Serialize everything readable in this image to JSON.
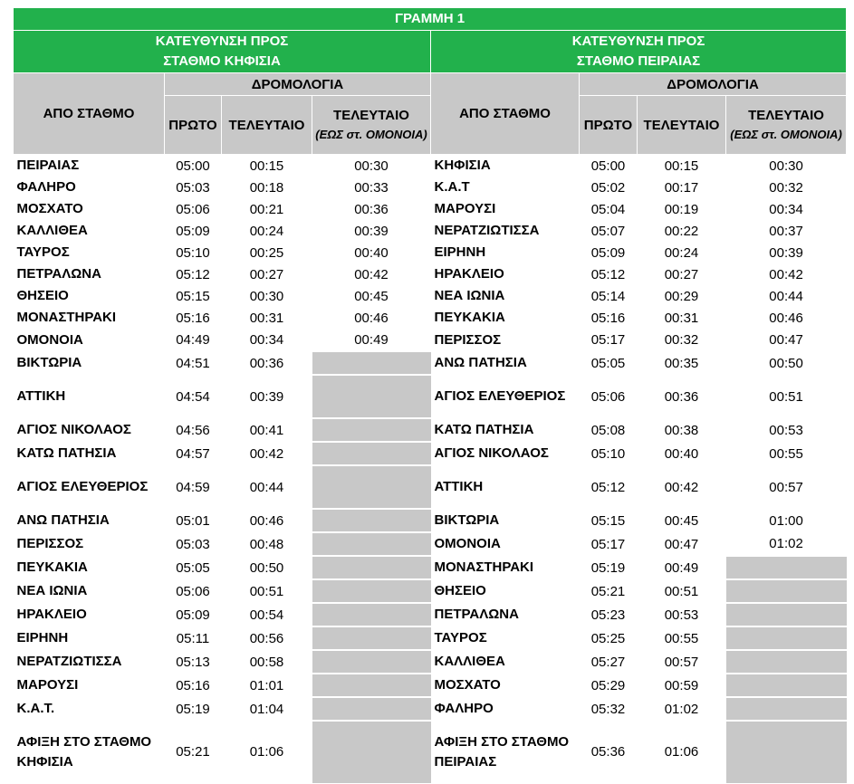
{
  "title": "ΓΡΑΜΜΗ 1",
  "directions": [
    {
      "line1": "ΚΑΤΕΥΘΥΝΣΗ ΠΡΟΣ",
      "line2": "ΣΤΑΘΜΟ ΚΗΦΙΣΙΑ"
    },
    {
      "line1": "ΚΑΤΕΥΘΥΝΣΗ ΠΡΟΣ",
      "line2": "ΣΤΑΘΜΟ ΠΕΙΡΑΙΑΣ"
    }
  ],
  "headers": {
    "from_station": "ΑΠΟ ΣΤΑΘΜΟ",
    "schedules": "ΔΡΟΜΟΛΟΓΙΑ",
    "first": "ΠΡΩΤΟ",
    "last": "ΤΕΛΕΥΤΑΙΟ",
    "last_partial": "ΤΕΛΕΥΤΑΙΟ",
    "last_partial_note": "(ΕΩΣ στ. ΟΜΟΝΟΙΑ)"
  },
  "rows": [
    {
      "h": 1,
      "l": {
        "s": "ΠΕΙΡΑΙΑΣ",
        "f": "05:00",
        "t": "00:15",
        "p": "00:30"
      },
      "r": {
        "s": "ΚΗΦΙΣΙΑ",
        "f": "05:00",
        "t": "00:15",
        "p": "00:30"
      }
    },
    {
      "h": 1,
      "l": {
        "s": "ΦΑΛΗΡΟ",
        "f": "05:03",
        "t": "00:18",
        "p": "00:33"
      },
      "r": {
        "s": "Κ.Α.Τ",
        "f": "05:02",
        "t": "00:17",
        "p": "00:32"
      }
    },
    {
      "h": 1,
      "l": {
        "s": "ΜΟΣΧΑΤΟ",
        "f": "05:06",
        "t": "00:21",
        "p": "00:36"
      },
      "r": {
        "s": "ΜΑΡΟΥΣΙ",
        "f": "05:04",
        "t": "00:19",
        "p": "00:34"
      }
    },
    {
      "h": 1,
      "l": {
        "s": "ΚΑΛΛΙΘΕΑ",
        "f": "05:09",
        "t": "00:24",
        "p": "00:39"
      },
      "r": {
        "s": "ΝΕΡΑΤΖΙΩΤΙΣΣΑ",
        "f": "05:07",
        "t": "00:22",
        "p": "00:37"
      }
    },
    {
      "h": 1,
      "l": {
        "s": "ΤΑΥΡΟΣ",
        "f": "05:10",
        "t": "00:25",
        "p": "00:40"
      },
      "r": {
        "s": "ΕΙΡΗΝΗ",
        "f": "05:09",
        "t": "00:24",
        "p": "00:39"
      }
    },
    {
      "h": 1,
      "l": {
        "s": "ΠΕΤΡΑΛΩΝΑ",
        "f": "05:12",
        "t": "00:27",
        "p": "00:42"
      },
      "r": {
        "s": "ΗΡΑΚΛΕΙΟ",
        "f": "05:12",
        "t": "00:27",
        "p": "00:42"
      }
    },
    {
      "h": 1,
      "l": {
        "s": "ΘΗΣΕΙΟ",
        "f": "05:15",
        "t": "00:30",
        "p": "00:45"
      },
      "r": {
        "s": "ΝΕΑ ΙΩΝΙΑ",
        "f": "05:14",
        "t": "00:29",
        "p": "00:44"
      }
    },
    {
      "h": 1,
      "l": {
        "s": "ΜΟΝΑΣΤΗΡΑΚΙ",
        "f": "05:16",
        "t": "00:31",
        "p": "00:46"
      },
      "r": {
        "s": "ΠΕΥΚΑΚΙΑ",
        "f": "05:16",
        "t": "00:31",
        "p": "00:46"
      }
    },
    {
      "h": 1,
      "l": {
        "s": "ΟΜΟΝΟΙΑ",
        "f": "04:49",
        "t": "00:34",
        "p": "00:49"
      },
      "r": {
        "s": "ΠΕΡΙΣΣΟΣ",
        "f": "05:17",
        "t": "00:32",
        "p": "00:47"
      }
    },
    {
      "h": 1,
      "l": {
        "s": "ΒΙΚΤΩΡΙΑ",
        "f": "04:51",
        "t": "00:36",
        "p": null
      },
      "r": {
        "s": "ΑΝΩ ΠΑΤΗΣΙΑ",
        "f": "05:05",
        "t": "00:35",
        "p": "00:50"
      }
    },
    {
      "h": 2,
      "l": {
        "s": "ΑΤΤΙΚΗ",
        "f": "04:54",
        "t": "00:39",
        "p": null
      },
      "r": {
        "s": "ΑΓΙΟΣ ΕΛΕΥΘΕΡΙΟΣ",
        "f": "05:06",
        "t": "00:36",
        "p": "00:51"
      }
    },
    {
      "h": 1,
      "l": {
        "s": "ΑΓΙΟΣ ΝΙΚΟΛΑΟΣ",
        "f": "04:56",
        "t": "00:41",
        "p": null
      },
      "r": {
        "s": "ΚΑΤΩ ΠΑΤΗΣΙΑ",
        "f": "05:08",
        "t": "00:38",
        "p": "00:53"
      }
    },
    {
      "h": 1,
      "l": {
        "s": "ΚΑΤΩ ΠΑΤΗΣΙΑ",
        "f": "04:57",
        "t": "00:42",
        "p": null
      },
      "r": {
        "s": "ΑΓΙΟΣ ΝΙΚΟΛΑΟΣ",
        "f": "05:10",
        "t": "00:40",
        "p": "00:55"
      }
    },
    {
      "h": 2,
      "l": {
        "s": "ΑΓΙΟΣ ΕΛΕΥΘΕΡΙΟΣ",
        "f": "04:59",
        "t": "00:44",
        "p": null
      },
      "r": {
        "s": "ΑΤΤΙΚΗ",
        "f": "05:12",
        "t": "00:42",
        "p": "00:57"
      }
    },
    {
      "h": 1,
      "l": {
        "s": "ΑΝΩ ΠΑΤΗΣΙΑ",
        "f": "05:01",
        "t": "00:46",
        "p": null
      },
      "r": {
        "s": "ΒΙΚΤΩΡΙΑ",
        "f": "05:15",
        "t": "00:45",
        "p": "01:00"
      }
    },
    {
      "h": 1,
      "l": {
        "s": "ΠΕΡΙΣΣΟΣ",
        "f": "05:03",
        "t": "00:48",
        "p": null
      },
      "r": {
        "s": "ΟΜΟΝΟΙΑ",
        "f": "05:17",
        "t": "00:47",
        "p": "01:02"
      }
    },
    {
      "h": 1,
      "l": {
        "s": "ΠΕΥΚΑΚΙΑ",
        "f": "05:05",
        "t": "00:50",
        "p": null
      },
      "r": {
        "s": "ΜΟΝΑΣΤΗΡΑΚΙ",
        "f": "05:19",
        "t": "00:49",
        "p": null
      }
    },
    {
      "h": 1,
      "l": {
        "s": "ΝΕΑ ΙΩΝΙΑ",
        "f": "05:06",
        "t": "00:51",
        "p": null
      },
      "r": {
        "s": "ΘΗΣΕΙΟ",
        "f": "05:21",
        "t": "00:51",
        "p": null
      }
    },
    {
      "h": 1,
      "l": {
        "s": "ΗΡΑΚΛΕΙΟ",
        "f": "05:09",
        "t": "00:54",
        "p": null
      },
      "r": {
        "s": "ΠΕΤΡΑΛΩΝΑ",
        "f": "05:23",
        "t": "00:53",
        "p": null
      }
    },
    {
      "h": 1,
      "l": {
        "s": "ΕΙΡΗΝΗ",
        "f": "05:11",
        "t": "00:56",
        "p": null
      },
      "r": {
        "s": "ΤΑΥΡΟΣ",
        "f": "05:25",
        "t": "00:55",
        "p": null
      }
    },
    {
      "h": 1,
      "l": {
        "s": "ΝΕΡΑΤΖΙΩΤΙΣΣΑ",
        "f": "05:13",
        "t": "00:58",
        "p": null
      },
      "r": {
        "s": "ΚΑΛΛΙΘΕΑ",
        "f": "05:27",
        "t": "00:57",
        "p": null
      }
    },
    {
      "h": 1,
      "l": {
        "s": "ΜΑΡΟΥΣΙ",
        "f": "05:16",
        "t": "01:01",
        "p": null
      },
      "r": {
        "s": "ΜΟΣΧΑΤΟ",
        "f": "05:29",
        "t": "00:59",
        "p": null
      }
    },
    {
      "h": 1,
      "l": {
        "s": "Κ.Α.Τ.",
        "f": "05:19",
        "t": "01:04",
        "p": null
      },
      "r": {
        "s": "ΦΑΛΗΡΟ",
        "f": "05:32",
        "t": "01:02",
        "p": null
      }
    },
    {
      "h": 3,
      "l": {
        "s": "ΑΦΙΞΗ ΣΤΟ ΣΤΑΘΜΟ ΚΗΦΙΣΙΑ",
        "f": "05:21",
        "t": "01:06",
        "p": null
      },
      "r": {
        "s": "ΑΦΙΞΗ ΣΤΟ ΣΤΑΘΜΟ ΠΕΙΡΑΙΑΣ",
        "f": "05:36",
        "t": "01:06",
        "p": null
      }
    }
  ]
}
